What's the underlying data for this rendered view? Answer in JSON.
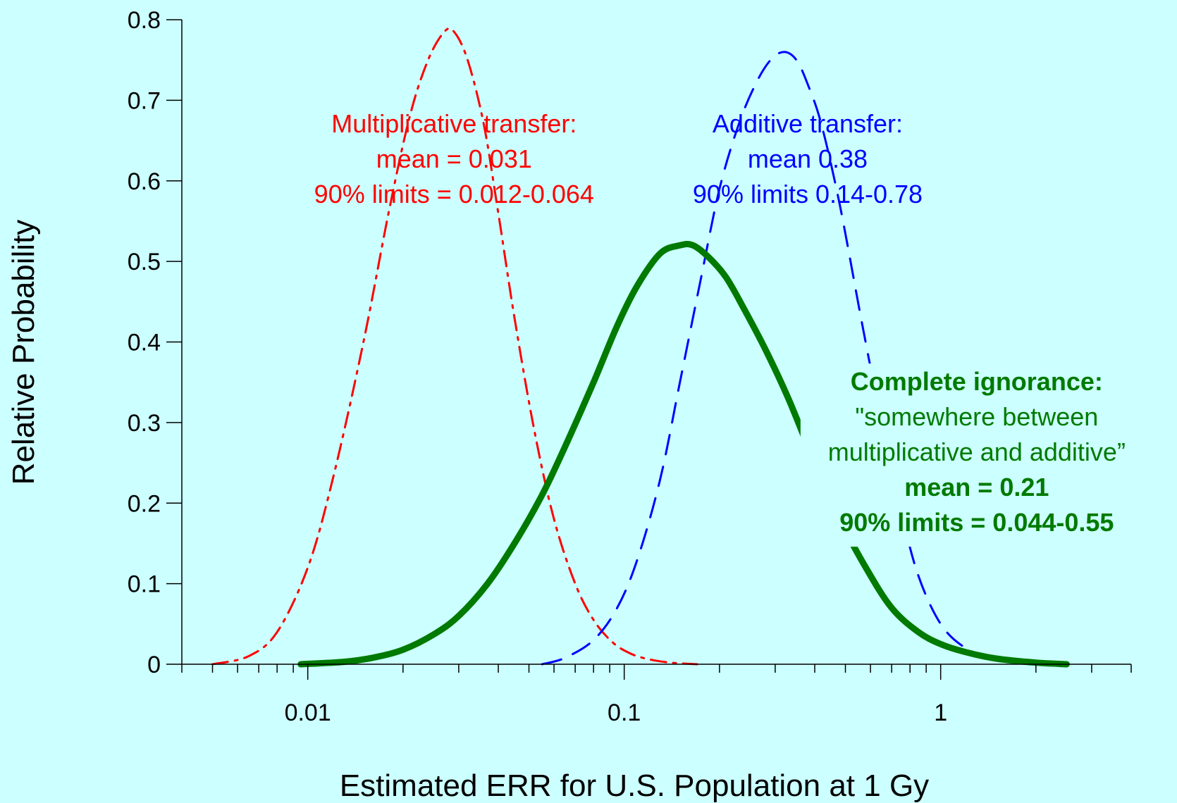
{
  "chart_data": {
    "type": "line",
    "title": "",
    "xlabel": "Estimated ERR for U.S. Population at 1 Gy",
    "ylabel": "Relative Probability",
    "x_scale": "log",
    "xlim": [
      0.004,
      4
    ],
    "ylim": [
      0,
      0.8
    ],
    "grid": false,
    "legend": "none",
    "x_ticks": [
      {
        "value": 0.01,
        "label": "0.01"
      },
      {
        "value": 0.1,
        "label": "0.1"
      },
      {
        "value": 1,
        "label": "1"
      }
    ],
    "y_ticks": [
      {
        "value": 0,
        "label": "0"
      },
      {
        "value": 0.1,
        "label": "0.1"
      },
      {
        "value": 0.2,
        "label": "0.2"
      },
      {
        "value": 0.3,
        "label": "0.3"
      },
      {
        "value": 0.4,
        "label": "0.4"
      },
      {
        "value": 0.5,
        "label": "0.5"
      },
      {
        "value": 0.6,
        "label": "0.6"
      },
      {
        "value": 0.7,
        "label": "0.7"
      },
      {
        "value": 0.8,
        "label": "0.8"
      }
    ],
    "series": [
      {
        "color": "#ff0000",
        "line_style": "dash-dot",
        "x": [
          0.005,
          0.0065,
          0.008,
          0.01,
          0.012,
          0.015,
          0.018,
          0.021,
          0.024,
          0.027,
          0.029,
          0.032,
          0.036,
          0.04,
          0.045,
          0.052,
          0.06,
          0.07,
          0.08,
          0.092,
          0.105,
          0.12,
          0.14,
          0.17
        ],
        "y": [
          0.0,
          0.01,
          0.04,
          0.12,
          0.23,
          0.4,
          0.56,
          0.68,
          0.75,
          0.785,
          0.785,
          0.75,
          0.67,
          0.56,
          0.43,
          0.29,
          0.18,
          0.1,
          0.055,
          0.027,
          0.013,
          0.006,
          0.002,
          0.0
        ]
      },
      {
        "color": "#0000ff",
        "line_style": "dashed",
        "x": [
          0.055,
          0.065,
          0.08,
          0.095,
          0.11,
          0.13,
          0.15,
          0.175,
          0.2,
          0.23,
          0.26,
          0.29,
          0.32,
          0.35,
          0.38,
          0.42,
          0.48,
          0.56,
          0.65,
          0.75,
          0.85,
          1.0,
          1.2,
          1.5
        ],
        "y": [
          0.0,
          0.008,
          0.03,
          0.07,
          0.13,
          0.23,
          0.35,
          0.48,
          0.59,
          0.67,
          0.72,
          0.75,
          0.76,
          0.75,
          0.72,
          0.67,
          0.57,
          0.43,
          0.3,
          0.19,
          0.11,
          0.05,
          0.02,
          0.005
        ]
      },
      {
        "color": "#007a00",
        "line_style": "solid",
        "x": [
          0.0095,
          0.013,
          0.016,
          0.02,
          0.025,
          0.03,
          0.037,
          0.045,
          0.055,
          0.065,
          0.08,
          0.095,
          0.11,
          0.13,
          0.15,
          0.165,
          0.185,
          0.21,
          0.24,
          0.28,
          0.33,
          0.4,
          0.48,
          0.58,
          0.7,
          0.85,
          1.0,
          1.2,
          1.5,
          2.0,
          2.5
        ],
        "y": [
          0.0,
          0.003,
          0.008,
          0.018,
          0.037,
          0.06,
          0.1,
          0.15,
          0.21,
          0.27,
          0.35,
          0.42,
          0.47,
          0.51,
          0.52,
          0.52,
          0.505,
          0.48,
          0.44,
          0.39,
          0.33,
          0.25,
          0.18,
          0.12,
          0.07,
          0.04,
          0.025,
          0.015,
          0.007,
          0.002,
          0.0
        ]
      }
    ],
    "annotations": [
      {
        "color": "#ff0000",
        "x": 0.029,
        "y": 0.66,
        "lines": [
          {
            "text": "Multiplicative transfer:",
            "bold": false
          },
          {
            "text": "mean = 0.031",
            "bold": false
          },
          {
            "text": "90% limits = 0.012-0.064",
            "bold": false
          }
        ]
      },
      {
        "color": "#0000ff",
        "x": 0.38,
        "y": 0.66,
        "lines": [
          {
            "text": "Additive transfer:",
            "bold": false
          },
          {
            "text": "mean 0.38",
            "bold": false
          },
          {
            "text": "90% limits 0.14-0.78",
            "bold": false
          }
        ]
      },
      {
        "color": "#007a00",
        "x": 1.3,
        "y": 0.34,
        "lines": [
          {
            "text": "Complete ignorance:",
            "bold": true
          },
          {
            "text": "\"somewhere between",
            "bold": false
          },
          {
            "text": "multiplicative and additive”",
            "bold": false
          },
          {
            "text": "mean = 0.21",
            "bold": true
          },
          {
            "text": "90% limits = 0.044-0.55",
            "bold": true
          }
        ]
      }
    ]
  }
}
